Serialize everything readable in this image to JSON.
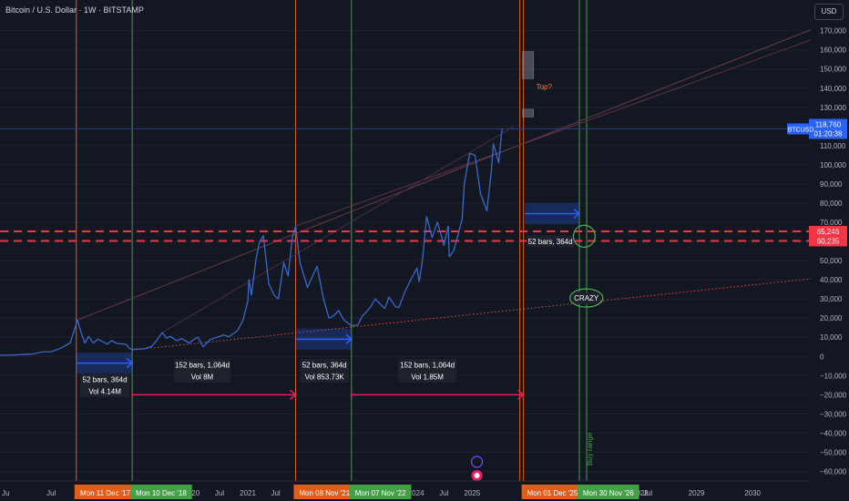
{
  "header": {
    "title": "Bitcoin / U.S. Dollar · 1W · BITSTAMP",
    "currency_button": "USD"
  },
  "colors": {
    "background": "#131722",
    "grid": "#1e222d",
    "axis_text": "#b2b5be",
    "price_line": "#3b67c9",
    "red_marker": "#e35d1a",
    "green_marker": "#43a047",
    "dashed_level": "#f23645",
    "projection_arrow": "#2962ff",
    "long_arrow": "#e91e63",
    "trend_dotted": "#e64a4a",
    "ellipse": "#4caf50",
    "price_badge": "#2962ff",
    "level_badge": "#f23645"
  },
  "chart_data": {
    "type": "line",
    "symbol": "BTCUSD",
    "interval": "1W",
    "exchange": "BITSTAMP",
    "x_range": [
      "2016-08-01",
      "2031-01-15"
    ],
    "y_range": [
      -65000,
      186000
    ],
    "y_ticks": [
      170000,
      160000,
      150000,
      140000,
      130000,
      120000,
      110000,
      100000,
      90000,
      80000,
      70000,
      60000,
      50000,
      40000,
      30000,
      20000,
      10000,
      0,
      -10000,
      -20000,
      -30000,
      -40000,
      -50000,
      -60000
    ],
    "y_tick_labels": [
      "170,000",
      "160,000",
      "150,000",
      "140,000",
      "130,000",
      "120,000",
      "110,000",
      "100,000",
      "90,000",
      "80,000",
      "70,000",
      "60,000",
      "50,000",
      "40,000",
      "30,000",
      "20,000",
      "10,000",
      "0",
      "−10,000",
      "−20,000",
      "−30,000",
      "−40,000",
      "−50,000",
      "−60,000"
    ],
    "x_ticks": [
      {
        "date": "2017-07-01",
        "label": "Jul"
      },
      {
        "date": "2018-07-01",
        "label": "Jul"
      },
      {
        "date": "2019-07-01",
        "label": "Jul"
      },
      {
        "date": "2020-01-01",
        "label": "2020"
      },
      {
        "date": "2020-07-01",
        "label": "Jul"
      },
      {
        "date": "2021-01-01",
        "label": "2021"
      },
      {
        "date": "2021-07-01",
        "label": "Jul"
      },
      {
        "date": "2023-01-01",
        "label": "2023"
      },
      {
        "date": "2023-07-01",
        "label": "Jul"
      },
      {
        "date": "2024-01-01",
        "label": "2024"
      },
      {
        "date": "2024-07-01",
        "label": "Jul"
      },
      {
        "date": "2025-01-01",
        "label": "2025"
      },
      {
        "date": "2026-07-01",
        "label": "Jul"
      },
      {
        "date": "2028-01-01",
        "label": "2028"
      },
      {
        "date": "2029-01-01",
        "label": "2029"
      },
      {
        "date": "2030-01-01",
        "label": "2030"
      }
    ],
    "series": [
      {
        "points": [
          [
            "2016-08-01",
            600
          ],
          [
            "2016-11-01",
            730
          ],
          [
            "2017-01-01",
            1000
          ],
          [
            "2017-03-01",
            1200
          ],
          [
            "2017-05-01",
            2300
          ],
          [
            "2017-07-01",
            2500
          ],
          [
            "2017-09-01",
            4300
          ],
          [
            "2017-11-01",
            7000
          ],
          [
            "2017-12-11",
            17000
          ],
          [
            "2017-12-18",
            19000
          ],
          [
            "2018-01-15",
            11500
          ],
          [
            "2018-02-05",
            7000
          ],
          [
            "2018-03-01",
            10500
          ],
          [
            "2018-04-01",
            7000
          ],
          [
            "2018-05-01",
            9000
          ],
          [
            "2018-07-01",
            6400
          ],
          [
            "2018-07-28",
            8200
          ],
          [
            "2018-09-01",
            6800
          ],
          [
            "2018-11-01",
            6300
          ],
          [
            "2018-11-19",
            4400
          ],
          [
            "2018-12-10",
            3300
          ],
          [
            "2019-01-01",
            3800
          ],
          [
            "2019-03-01",
            4000
          ],
          [
            "2019-04-15",
            5200
          ],
          [
            "2019-05-15",
            8000
          ],
          [
            "2019-06-24",
            12500
          ],
          [
            "2019-07-22",
            9500
          ],
          [
            "2019-08-15",
            10500
          ],
          [
            "2019-09-25",
            8200
          ],
          [
            "2019-10-28",
            9300
          ],
          [
            "2019-12-16",
            7000
          ],
          [
            "2020-01-15",
            8800
          ],
          [
            "2020-02-12",
            10000
          ],
          [
            "2020-03-16",
            5000
          ],
          [
            "2020-05-01",
            8800
          ],
          [
            "2020-07-27",
            11200
          ],
          [
            "2020-09-01",
            10300
          ],
          [
            "2020-10-26",
            13500
          ],
          [
            "2020-12-01",
            19000
          ],
          [
            "2021-01-01",
            29000
          ],
          [
            "2021-01-08",
            40000
          ],
          [
            "2021-01-25",
            32000
          ],
          [
            "2021-02-22",
            50000
          ],
          [
            "2021-03-15",
            59000
          ],
          [
            "2021-04-12",
            63000
          ],
          [
            "2021-05-17",
            38000
          ],
          [
            "2021-06-21",
            32000
          ],
          [
            "2021-07-19",
            30000
          ],
          [
            "2021-08-23",
            49000
          ],
          [
            "2021-09-20",
            42000
          ],
          [
            "2021-10-18",
            62000
          ],
          [
            "2021-11-08",
            68000
          ],
          [
            "2021-12-06",
            49000
          ],
          [
            "2022-01-24",
            36000
          ],
          [
            "2022-03-28",
            47000
          ],
          [
            "2022-05-09",
            30000
          ],
          [
            "2022-06-13",
            20000
          ],
          [
            "2022-07-11",
            21000
          ],
          [
            "2022-08-15",
            24000
          ],
          [
            "2022-09-19",
            19000
          ],
          [
            "2022-11-07",
            16000
          ],
          [
            "2022-12-19",
            16500
          ],
          [
            "2023-01-16",
            21000
          ],
          [
            "2023-02-20",
            24000
          ],
          [
            "2023-03-13",
            26000
          ],
          [
            "2023-04-10",
            30000
          ],
          [
            "2023-06-12",
            25000
          ],
          [
            "2023-07-10",
            31000
          ],
          [
            "2023-08-21",
            26000
          ],
          [
            "2023-09-11",
            25500
          ],
          [
            "2023-10-23",
            34000
          ],
          [
            "2023-12-04",
            41000
          ],
          [
            "2024-01-08",
            46000
          ],
          [
            "2024-01-22",
            39000
          ],
          [
            "2024-02-12",
            50000
          ],
          [
            "2024-03-11",
            73000
          ],
          [
            "2024-04-15",
            62000
          ],
          [
            "2024-05-20",
            70000
          ],
          [
            "2024-07-01",
            58000
          ],
          [
            "2024-07-29",
            68000
          ],
          [
            "2024-08-05",
            52000
          ],
          [
            "2024-09-02",
            55000
          ],
          [
            "2024-09-30",
            63000
          ],
          [
            "2024-10-28",
            72000
          ],
          [
            "2024-11-11",
            90000
          ],
          [
            "2024-12-16",
            106000
          ],
          [
            "2025-01-20",
            105000
          ],
          [
            "2025-02-24",
            85000
          ],
          [
            "2025-04-07",
            76000
          ],
          [
            "2025-05-05",
            96000
          ],
          [
            "2025-05-19",
            111000
          ],
          [
            "2025-06-23",
            101000
          ],
          [
            "2025-07-14",
            118760
          ]
        ]
      }
    ],
    "last_price": {
      "label": "BTCUSD",
      "value": "118,760",
      "countdown": "01:20:38"
    },
    "price_levels": [
      {
        "value": 65246,
        "label": "65,246"
      },
      {
        "value": 60235,
        "label": "60,235"
      }
    ],
    "date_markers": [
      {
        "date": "2017-12-11",
        "label": "Mon 11 Dec '17",
        "color": "red"
      },
      {
        "date": "2018-12-10",
        "label": "Mon 10 Dec '18",
        "color": "green"
      },
      {
        "date": "2021-11-08",
        "label": "Mon 08 Nov '21",
        "color": "red"
      },
      {
        "date": "2022-11-07",
        "label": "Mon 07 Nov '22",
        "color": "green"
      },
      {
        "date": "2025-12-01",
        "label": "Mon 01 Dec '25",
        "color": "red"
      },
      {
        "date": "2026-11-30",
        "label": "Mon 30 Nov '26",
        "color": "green"
      }
    ],
    "measurements": [
      {
        "bars": "52 bars, 364d",
        "volume": "Vol 4.14M"
      },
      {
        "bars": "152 bars, 1,064d",
        "volume": "Vol 8M"
      },
      {
        "bars": "52 bars, 364d",
        "volume": "Vol 853.73K"
      },
      {
        "bars": "152 bars, 1,064d",
        "volume": "Vol 1.85M"
      },
      {
        "bars": "52 bars, 364d",
        "volume": ""
      }
    ],
    "annotations": {
      "top": "Top?",
      "crazy": "CRAZY",
      "buy_range": "Buy range",
      "axis_fragments": [
        "Ju",
        "7",
        "Jul"
      ]
    }
  }
}
